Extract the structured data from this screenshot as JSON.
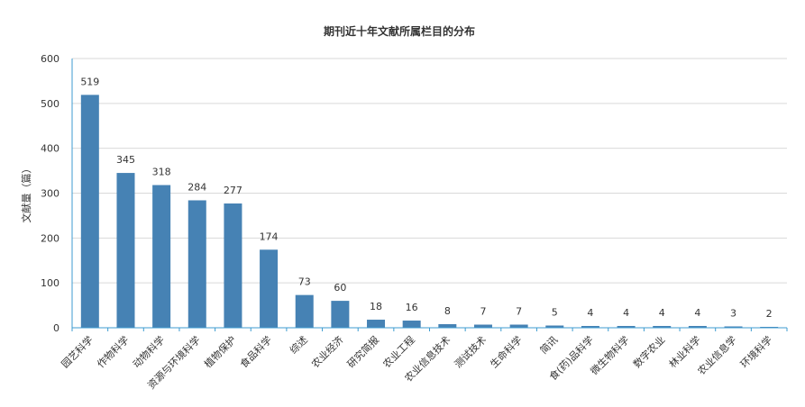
{
  "chart_data": {
    "type": "bar",
    "title": "期刊近十年文献所属栏目的分布",
    "xlabel": "",
    "ylabel": "文献量（篇）",
    "ylim": [
      0,
      600
    ],
    "yticks": [
      0,
      100,
      200,
      300,
      400,
      500,
      600
    ],
    "grid": true,
    "categories": [
      "园艺科学",
      "作物科学",
      "动物科学",
      "资源与环境科学",
      "植物保护",
      "食品科学",
      "综述",
      "农业经济",
      "研究简报",
      "农业工程",
      "农业信息技术",
      "测试技术",
      "生命科学",
      "简讯",
      "食(药)品科学",
      "微生物科学",
      "数字农业",
      "林业科学",
      "农业信息学",
      "环境科学"
    ],
    "values": [
      519,
      345,
      318,
      284,
      277,
      174,
      73,
      60,
      18,
      16,
      8,
      7,
      7,
      5,
      4,
      4,
      4,
      4,
      3,
      2
    ],
    "bar_color": "#4682b4",
    "axis_color": "#3c9bd0",
    "grid_color": "#d9d9d9"
  }
}
